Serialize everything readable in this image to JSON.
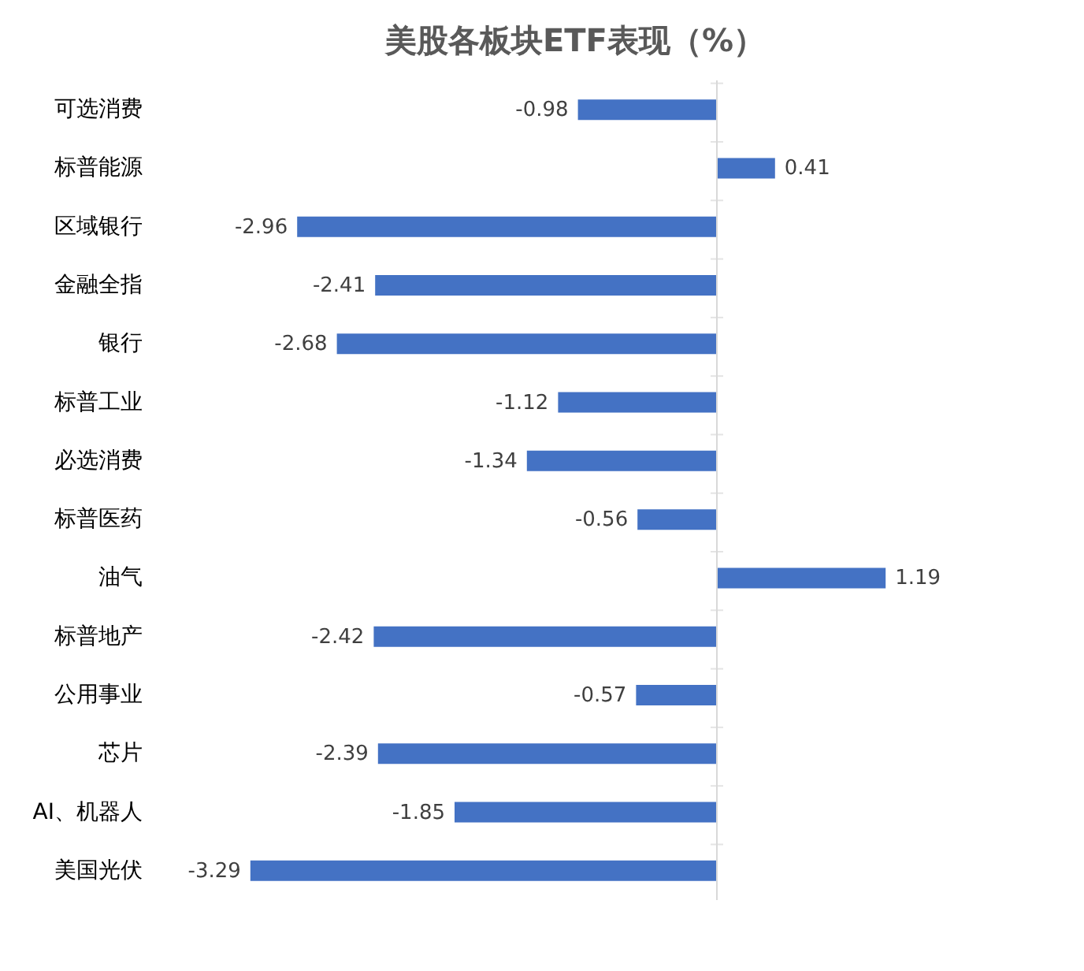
{
  "chart_data": {
    "type": "bar",
    "orientation": "horizontal",
    "title": "美股各板块ETF表现（%）",
    "categories": [
      "可选消费",
      "标普能源",
      "区域银行",
      "金融全指",
      "银行",
      "标普工业",
      "必选消费",
      "标普医药",
      "油气",
      "标普地产",
      "公用事业",
      "芯片",
      "AI、机器人",
      "美国光伏"
    ],
    "values": [
      -0.98,
      0.41,
      -2.96,
      -2.41,
      -2.68,
      -1.12,
      -1.34,
      -0.56,
      1.19,
      -2.42,
      -0.57,
      -2.39,
      -1.85,
      -3.29
    ],
    "color": "#4472c4",
    "data_labels": true,
    "tick_labels": "y"
  }
}
